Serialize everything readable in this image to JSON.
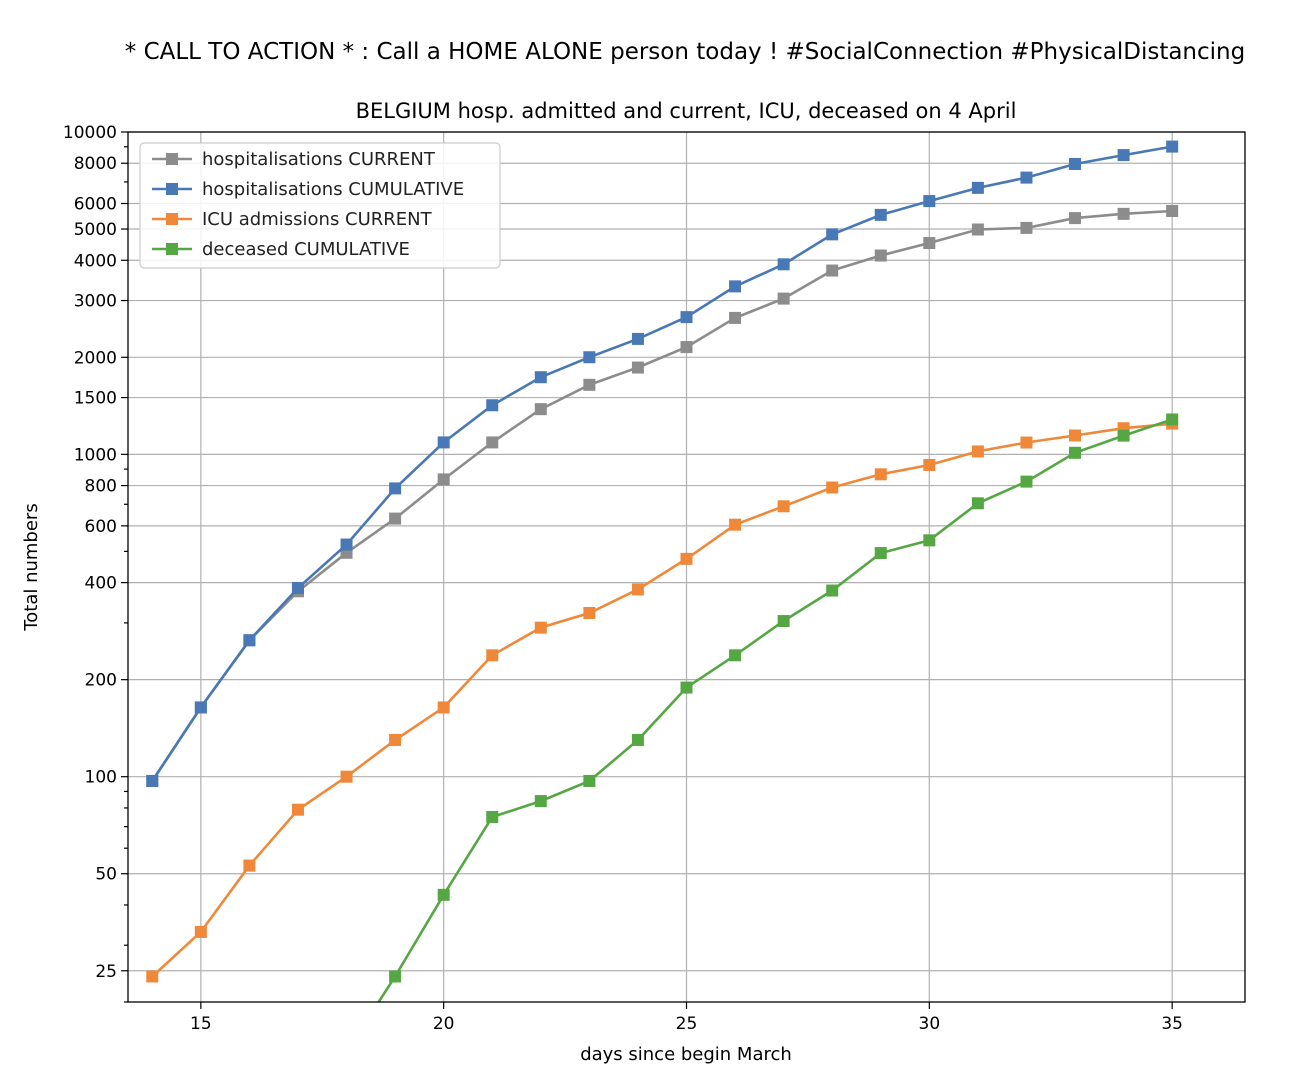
{
  "chart_data": {
    "type": "line",
    "suptitle": "* CALL TO ACTION * : Call a HOME ALONE person today ! #SocialConnection #PhysicalDistancing",
    "title": "BELGIUM hosp. admitted and current, ICU, deceased on 4 April",
    "xlabel": "days since begin March",
    "ylabel": "Total numbers",
    "yscale": "log",
    "xlim": [
      13.5,
      36.5
    ],
    "ylim": [
      20,
      10000
    ],
    "grid": true,
    "legend_position": "upper left",
    "xticks": [
      15,
      20,
      25,
      30,
      35
    ],
    "yticks": [
      25,
      50,
      100,
      200,
      400,
      600,
      800,
      1000,
      1500,
      2000,
      3000,
      4000,
      5000,
      6000,
      8000,
      10000
    ],
    "series": [
      {
        "name": "hospitalisations CURRENT",
        "color": "#8c8c8c",
        "x": [
          14,
          15,
          16,
          17,
          18,
          19,
          20,
          21,
          22,
          23,
          24,
          25,
          26,
          27,
          28,
          29,
          30,
          31,
          32,
          33,
          34,
          35
        ],
        "values": [
          97,
          164,
          265,
          376,
          495,
          632,
          836,
          1089,
          1381,
          1643,
          1859,
          2152,
          2650,
          3042,
          3717,
          4138,
          4524,
          4983,
          5041,
          5406,
          5573,
          5688
        ]
      },
      {
        "name": "hospitalisations CUMULATIVE",
        "color": "#4878b5",
        "x": [
          14,
          15,
          16,
          17,
          18,
          19,
          20,
          21,
          22,
          23,
          24,
          25,
          26,
          27,
          28,
          29,
          30,
          31,
          32,
          33,
          34,
          35
        ],
        "values": [
          97,
          164,
          265,
          385,
          525,
          784,
          1089,
          1420,
          1735,
          2001,
          2281,
          2665,
          3320,
          3886,
          4813,
          5533,
          6105,
          6710,
          7220,
          7959,
          8480,
          9010
        ]
      },
      {
        "name": "ICU admissions CURRENT",
        "color": "#f0883a",
        "x": [
          14,
          15,
          16,
          17,
          18,
          19,
          20,
          21,
          22,
          23,
          24,
          25,
          26,
          27,
          28,
          29,
          30,
          31,
          32,
          33,
          34,
          35
        ],
        "values": [
          24,
          33,
          53,
          79,
          100,
          130,
          164,
          238,
          290,
          322,
          381,
          474,
          605,
          690,
          789,
          867,
          927,
          1021,
          1088,
          1144,
          1205,
          1245
        ]
      },
      {
        "name": "deceased CUMULATIVE",
        "color": "#55a744",
        "x": [
          18,
          19,
          20,
          21,
          22,
          23,
          24,
          25,
          26,
          27,
          28,
          29,
          30,
          31,
          32,
          33,
          34,
          35
        ],
        "values": [
          14,
          24,
          43,
          75,
          84,
          97,
          130,
          189,
          238,
          304,
          378,
          494,
          541,
          705,
          823,
          1011,
          1143,
          1283
        ]
      }
    ]
  }
}
